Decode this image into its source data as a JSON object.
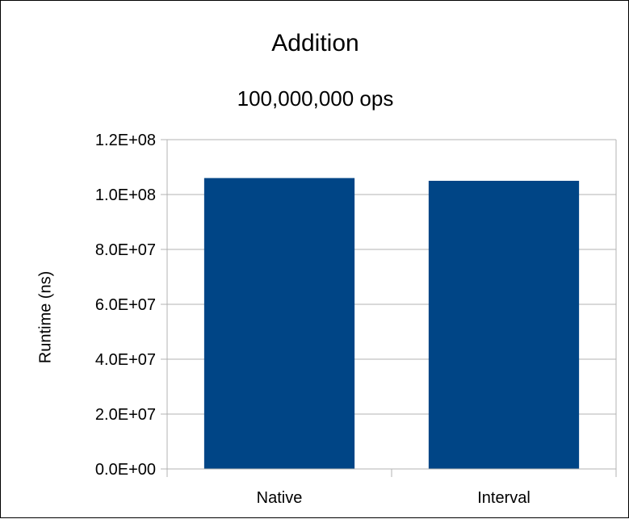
{
  "chart_data": {
    "type": "bar",
    "title": "Addition",
    "subtitle": "100,000,000 ops",
    "xlabel": "",
    "ylabel": "Runtime (ns)",
    "categories": [
      "Native",
      "Interval"
    ],
    "values": [
      106000000,
      105000000
    ],
    "ylim": [
      0,
      120000000
    ],
    "yticks": [
      {
        "value": 0,
        "label": "0.0E+00"
      },
      {
        "value": 20000000,
        "label": "2.0E+07"
      },
      {
        "value": 40000000,
        "label": "4.0E+07"
      },
      {
        "value": 60000000,
        "label": "6.0E+07"
      },
      {
        "value": 80000000,
        "label": "8.0E+07"
      },
      {
        "value": 100000000,
        "label": "1.0E+08"
      },
      {
        "value": 120000000,
        "label": "1.2E+08"
      }
    ],
    "grid": true,
    "legend": "none",
    "bar_color": "#004586",
    "grid_color": "#b3b3b3"
  }
}
